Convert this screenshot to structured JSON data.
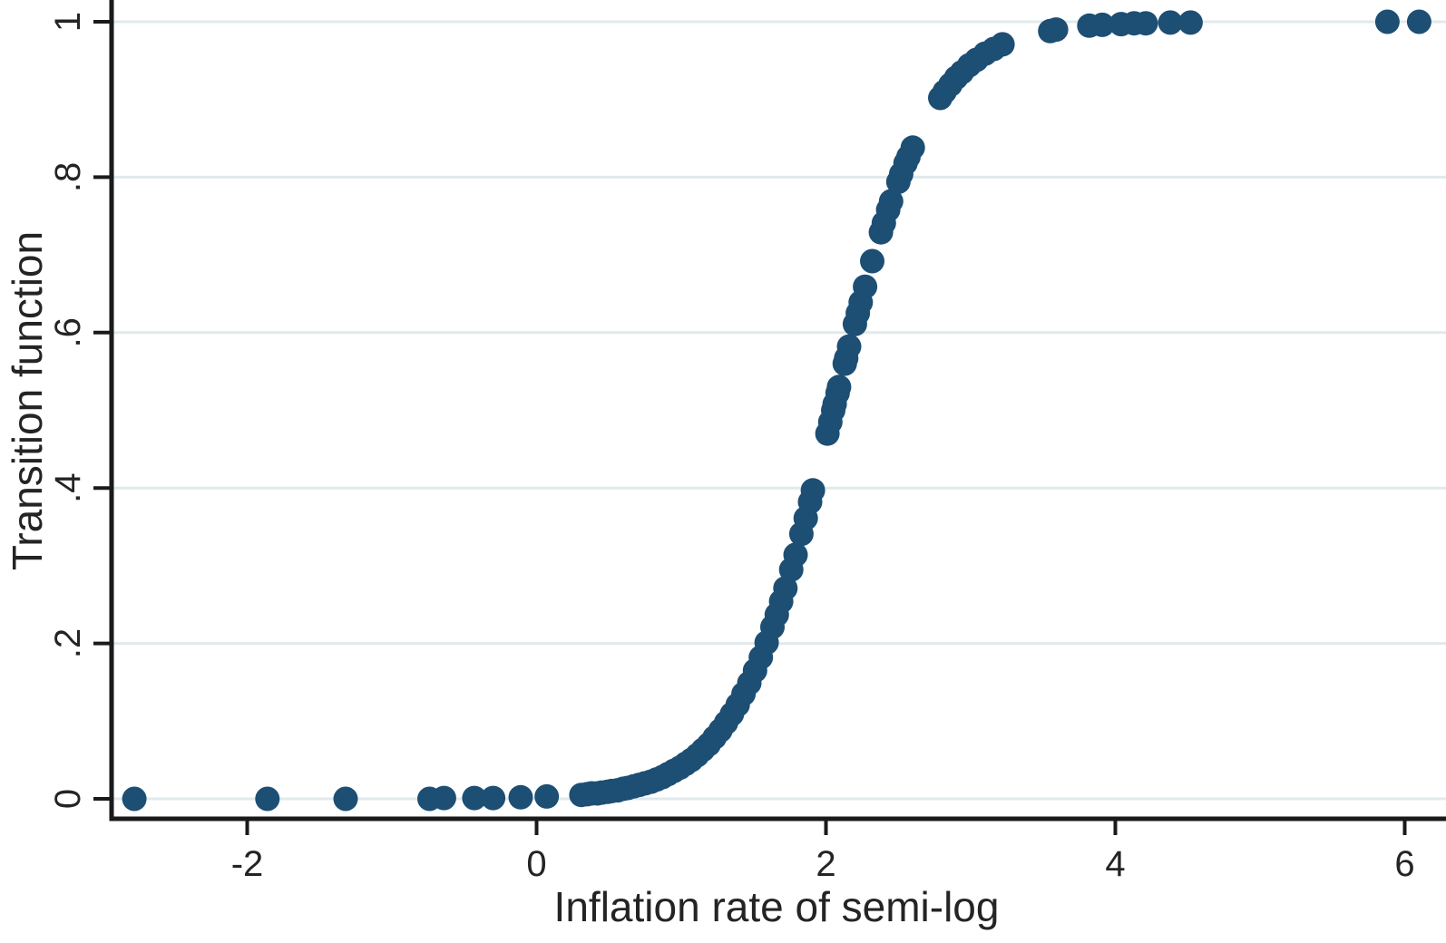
{
  "figure": {
    "background_color": "#ffffff"
  },
  "chart_data": {
    "type": "scatter",
    "title": "",
    "xlabel": "Inflation rate of semi-log",
    "ylabel": "Transition function",
    "x_ticks": [
      -2,
      0,
      2,
      4,
      6
    ],
    "x_tick_labels": [
      "-2",
      "0",
      "2",
      "4",
      "6"
    ],
    "y_ticks": [
      0,
      0.2,
      0.4,
      0.6,
      0.8,
      1
    ],
    "y_tick_labels": [
      "0",
      ".2",
      ".4",
      ".6",
      ".8",
      "1"
    ],
    "xlim": [
      -2.94,
      6.29
    ],
    "ylim": [
      -0.026,
      1.028
    ],
    "grid": "horizontal-only",
    "legend": "none",
    "marker_shape": "circle",
    "marker_color": "#1d4e73",
    "grid_color": "#e0eaec",
    "axis_color": "#1a1a1a",
    "text_color": "#242424",
    "series": [
      {
        "name": "Transition function vs inflation rate",
        "x": [
          -2.78,
          -1.86,
          -1.32,
          -0.74,
          -0.64,
          -0.43,
          -0.3,
          -0.11,
          0.07,
          0.31,
          0.35,
          0.38,
          0.42,
          0.45,
          0.49,
          0.52,
          0.56,
          0.6,
          0.63,
          0.67,
          0.71,
          0.75,
          0.79,
          0.83,
          0.87,
          0.91,
          0.95,
          0.99,
          1.03,
          1.07,
          1.11,
          1.15,
          1.19,
          1.23,
          1.27,
          1.31,
          1.35,
          1.39,
          1.43,
          1.47,
          1.51,
          1.55,
          1.59,
          1.63,
          1.66,
          1.69,
          1.72,
          1.76,
          1.79,
          1.83,
          1.86,
          1.89,
          1.91,
          2.01,
          2.03,
          2.05,
          2.06,
          2.08,
          2.09,
          2.13,
          2.14,
          2.16,
          2.2,
          2.22,
          2.24,
          2.27,
          2.32,
          2.38,
          2.4,
          2.43,
          2.45,
          2.5,
          2.52,
          2.55,
          2.57,
          2.6,
          2.79,
          2.82,
          2.86,
          2.9,
          2.94,
          2.99,
          3.04,
          3.1,
          3.16,
          3.22,
          3.55,
          3.59,
          3.82,
          3.91,
          4.04,
          4.13,
          4.21,
          4.38,
          4.52,
          5.88,
          6.1
        ],
        "y": [
          0.0,
          0.0,
          0.0,
          0.0,
          0.001,
          0.001,
          0.001,
          0.002,
          0.003,
          0.005,
          0.006,
          0.007,
          0.007,
          0.008,
          0.009,
          0.01,
          0.011,
          0.013,
          0.014,
          0.016,
          0.018,
          0.02,
          0.022,
          0.025,
          0.028,
          0.032,
          0.036,
          0.04,
          0.045,
          0.05,
          0.056,
          0.063,
          0.07,
          0.079,
          0.088,
          0.098,
          0.109,
          0.121,
          0.135,
          0.149,
          0.165,
          0.182,
          0.201,
          0.221,
          0.237,
          0.254,
          0.271,
          0.295,
          0.314,
          0.341,
          0.361,
          0.382,
          0.397,
          0.47,
          0.485,
          0.5,
          0.508,
          0.522,
          0.53,
          0.56,
          0.567,
          0.582,
          0.611,
          0.625,
          0.639,
          0.659,
          0.692,
          0.729,
          0.741,
          0.758,
          0.769,
          0.794,
          0.804,
          0.818,
          0.826,
          0.838,
          0.902,
          0.91,
          0.919,
          0.928,
          0.935,
          0.944,
          0.951,
          0.959,
          0.965,
          0.971,
          0.988,
          0.99,
          0.995,
          0.996,
          0.997,
          0.998,
          0.998,
          0.999,
          0.999,
          1.0,
          1.0
        ]
      }
    ]
  }
}
